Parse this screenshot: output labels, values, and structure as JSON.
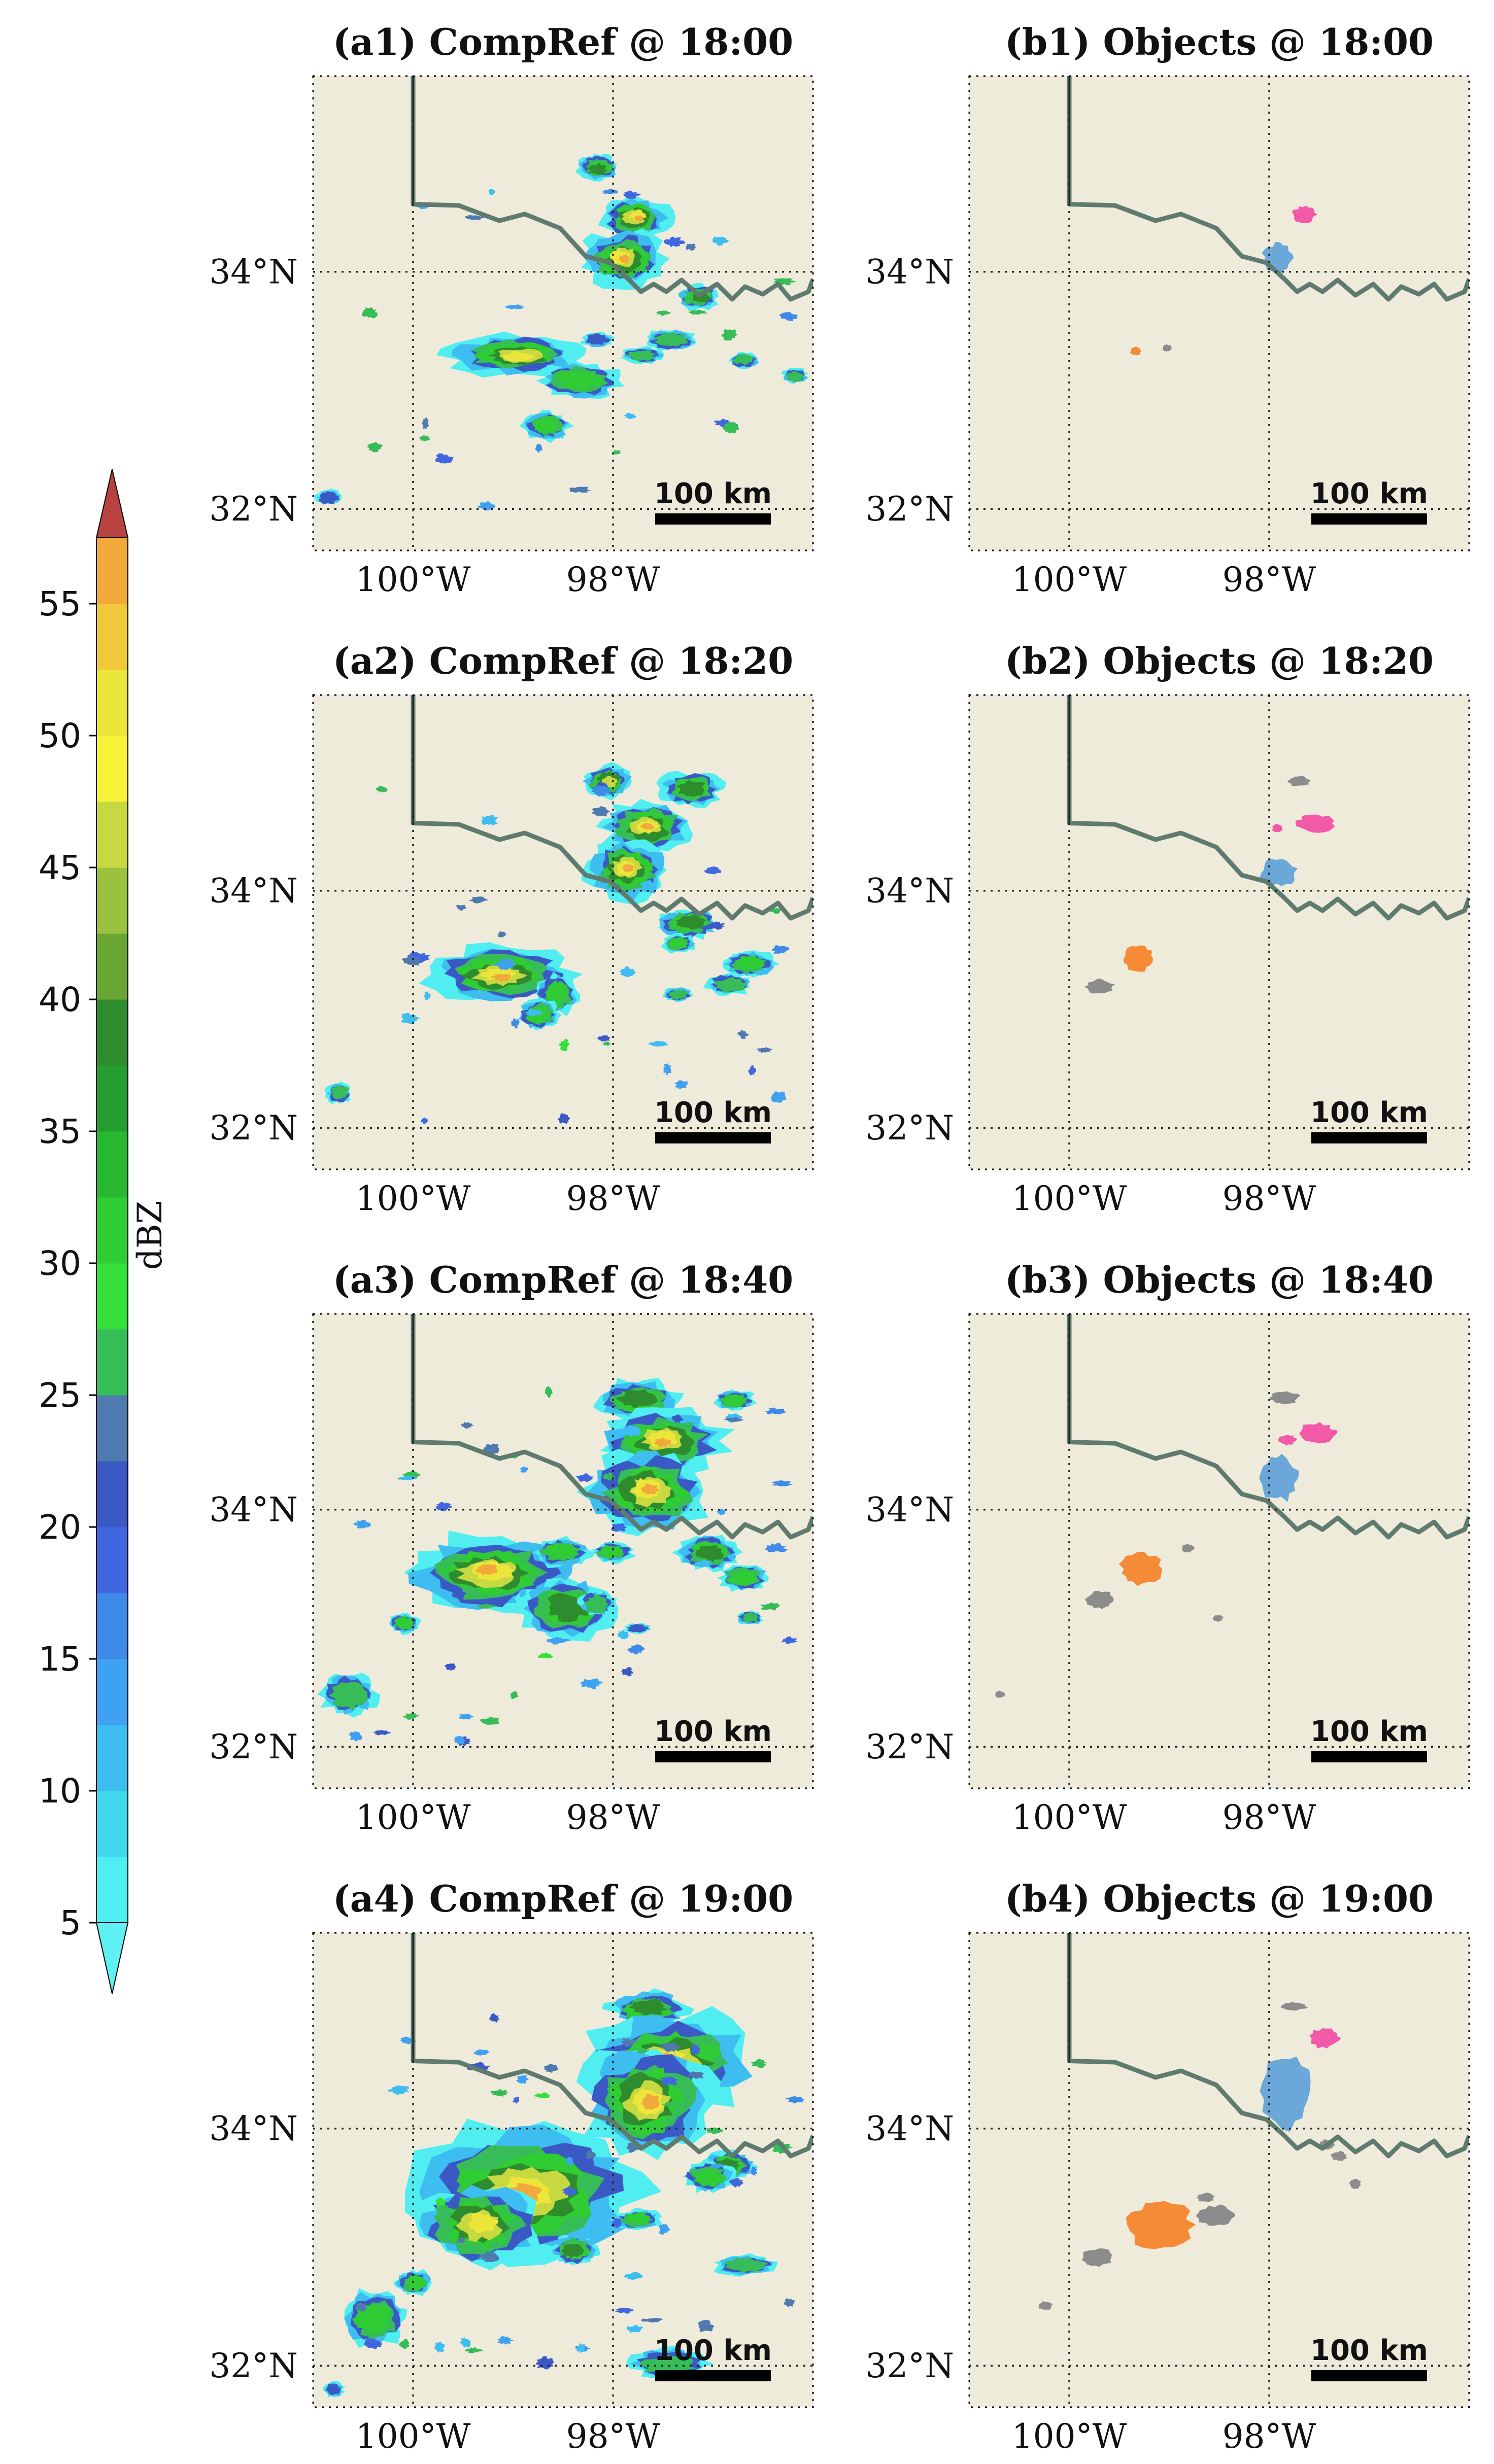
{
  "chart_data": {
    "type": "heatmap",
    "description_free": true,
    "panels": [
      {
        "id": "a1",
        "title": "(a1) CompRef @ 18:00",
        "kind": "reflectivity",
        "time": "18:00"
      },
      {
        "id": "b1",
        "title": "(b1) Objects @ 18:00",
        "kind": "objects",
        "time": "18:00"
      },
      {
        "id": "a2",
        "title": "(a2) CompRef @ 18:20",
        "kind": "reflectivity",
        "time": "18:20"
      },
      {
        "id": "b2",
        "title": "(b2) Objects @ 18:20",
        "kind": "objects",
        "time": "18:20"
      },
      {
        "id": "a3",
        "title": "(a3) CompRef @ 18:40",
        "kind": "reflectivity",
        "time": "18:40"
      },
      {
        "id": "b3",
        "title": "(b3) Objects @ 18:40",
        "kind": "objects",
        "time": "18:40"
      },
      {
        "id": "a4",
        "title": "(a4) CompRef @ 19:00",
        "kind": "reflectivity",
        "time": "19:00"
      },
      {
        "id": "b4",
        "title": "(b4) Objects @ 19:00",
        "kind": "objects",
        "time": "19:00"
      }
    ],
    "x_ticks": [
      {
        "value": -100,
        "label": "100°W"
      },
      {
        "value": -98,
        "label": "98°W"
      }
    ],
    "y_ticks": [
      {
        "value": 34,
        "label": "34°N"
      },
      {
        "value": 32,
        "label": "32°N"
      }
    ],
    "xlim": [
      -101.0,
      -96.0
    ],
    "ylim": [
      31.65,
      35.65
    ],
    "scale_bar": {
      "label": "100 km",
      "length_km": 100
    },
    "grid": "dotted",
    "colorbar": {
      "label": "dBZ",
      "ticks": [
        5,
        10,
        15,
        20,
        25,
        30,
        35,
        40,
        45,
        50,
        55
      ],
      "range": [
        5,
        57.5
      ],
      "extend": "both",
      "levels": [
        5,
        7.5,
        10,
        12.5,
        15,
        17.5,
        20,
        22.5,
        25,
        27.5,
        30,
        32.5,
        35,
        37.5,
        40,
        42.5,
        45,
        47.5,
        50,
        52.5,
        55,
        57.5
      ],
      "colors": [
        "#50eef0",
        "#3fd8ee",
        "#3dbdf0",
        "#3fa1f2",
        "#3e8ae8",
        "#4067df",
        "#3a59c4",
        "#4e7ab0",
        "#36bd58",
        "#36e03a",
        "#2fcc33",
        "#28b830",
        "#249e30",
        "#2f8c2e",
        "#6aa632",
        "#9ac23e",
        "#c7d840",
        "#f5f237",
        "#ede63a",
        "#f2c83b",
        "#f1a93b",
        "#f08a3c",
        "#f15c3c",
        "#ea3c3c",
        "#d82f35",
        "#c5362f"
      ],
      "extend_colors": {
        "under": "#5ff0f4",
        "over": "#b74240"
      }
    },
    "object_colors": {
      "orange": "#f58a37",
      "pink": "#f25aa8",
      "blue": "#6ba7d8",
      "gray": "#8c8c8c"
    }
  }
}
